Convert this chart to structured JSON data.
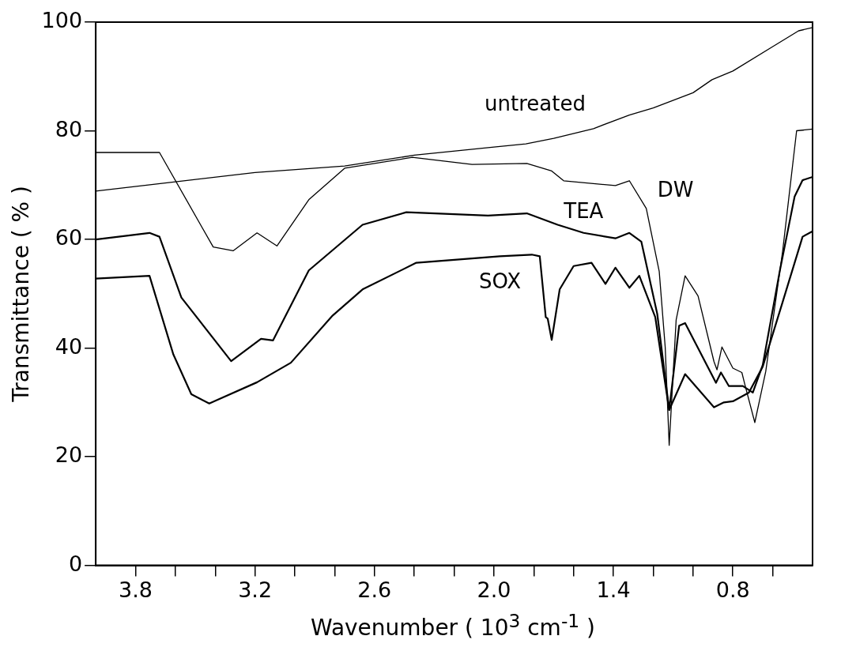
{
  "chart_data": {
    "type": "line",
    "xlabel": "Wavenumber ( 10$^{3}$ cm$^{-1}$ )",
    "ylabel": "Transmittance ( % )",
    "xlim": [
      4.0,
      0.4
    ],
    "ylim": [
      0,
      100
    ],
    "xticks": [
      {
        "value": 3.8,
        "label": "3.8"
      },
      {
        "value": 3.6,
        "label": null
      },
      {
        "value": 3.4,
        "label": null
      },
      {
        "value": 3.2,
        "label": "3.2"
      },
      {
        "value": 3.0,
        "label": null
      },
      {
        "value": 2.8,
        "label": null
      },
      {
        "value": 2.6,
        "label": "2.6"
      },
      {
        "value": 2.4,
        "label": null
      },
      {
        "value": 2.2,
        "label": null
      },
      {
        "value": 2.0,
        "label": "2.0"
      },
      {
        "value": 1.8,
        "label": null
      },
      {
        "value": 1.6,
        "label": null
      },
      {
        "value": 1.4,
        "label": "1.4"
      },
      {
        "value": 1.2,
        "label": null
      },
      {
        "value": 1.0,
        "label": null
      },
      {
        "value": 0.8,
        "label": "0.8"
      },
      {
        "value": 0.6,
        "label": null
      }
    ],
    "yticks": [
      0,
      20,
      40,
      60,
      80,
      100
    ],
    "marker": "none",
    "line_style": "solid",
    "legend": false,
    "series": [
      {
        "name": "untreated",
        "color": "#000000",
        "x": [
          4.0,
          3.6,
          3.2,
          2.75,
          2.4,
          2.0,
          1.84,
          1.7,
          1.5,
          1.32,
          1.2,
          1.0,
          0.905,
          0.8,
          0.6,
          0.47,
          0.4
        ],
        "values": [
          68.9,
          70.6,
          72.3,
          73.5,
          75.5,
          77.0,
          77.6,
          78.6,
          80.4,
          82.9,
          84.2,
          87.0,
          89.4,
          91.0,
          95.5,
          98.4,
          99.0
        ]
      },
      {
        "name": "DW",
        "color": "#000000",
        "x": [
          4.0,
          3.68,
          3.41,
          3.31,
          3.19,
          3.09,
          2.93,
          2.75,
          2.41,
          2.11,
          1.835,
          1.71,
          1.65,
          1.39,
          1.32,
          1.235,
          1.17,
          1.14,
          1.12,
          1.085,
          1.04,
          0.975,
          0.895,
          0.88,
          0.855,
          0.8,
          0.755,
          0.74,
          0.69,
          0.635,
          0.55,
          0.48,
          0.4
        ],
        "values": [
          76,
          76,
          58.6,
          57.9,
          61.2,
          58.8,
          67.3,
          73.1,
          75.1,
          73.8,
          74.0,
          72.6,
          70.8,
          69.9,
          70.8,
          65.7,
          54.1,
          40.2,
          22.1,
          45.2,
          53.3,
          49.6,
          37.5,
          36.0,
          40.2,
          36.3,
          35.5,
          33.3,
          26.3,
          35.7,
          57.9,
          80.0,
          80.3
        ]
      },
      {
        "name": "TEA",
        "color": "#000000",
        "x": [
          4.0,
          3.73,
          3.68,
          3.57,
          3.32,
          3.17,
          3.11,
          2.93,
          2.66,
          2.44,
          2.03,
          1.835,
          1.68,
          1.55,
          1.39,
          1.32,
          1.26,
          1.18,
          1.12,
          1.07,
          1.04,
          0.885,
          0.86,
          0.82,
          0.75,
          0.7,
          0.65,
          0.565,
          0.49,
          0.45,
          0.4
        ],
        "values": [
          60,
          61.2,
          60.5,
          49.3,
          37.6,
          41.7,
          41.4,
          54.3,
          62.7,
          65,
          64.4,
          64.8,
          62.7,
          61.2,
          60.2,
          61.2,
          59.6,
          46.3,
          28.6,
          44.1,
          44.6,
          33.6,
          35.5,
          33.0,
          33.0,
          31.8,
          36.9,
          54.1,
          67.9,
          70.9,
          71.5
        ]
      },
      {
        "name": "SOX",
        "color": "#000000",
        "x": [
          4.0,
          3.73,
          3.61,
          3.52,
          3.43,
          3.19,
          3.02,
          2.81,
          2.66,
          2.39,
          1.97,
          1.81,
          1.77,
          1.74,
          1.73,
          1.71,
          1.67,
          1.6,
          1.51,
          1.44,
          1.39,
          1.32,
          1.27,
          1.19,
          1.12,
          1.04,
          0.895,
          0.845,
          0.8,
          0.72,
          0.65,
          0.55,
          0.45,
          0.4
        ],
        "values": [
          52.8,
          53.3,
          38.8,
          31.5,
          29.8,
          33.7,
          37.3,
          46,
          50.8,
          55.7,
          56.9,
          57.2,
          56.9,
          45.7,
          45.4,
          41.5,
          50.8,
          55.1,
          55.7,
          51.8,
          54.8,
          51.1,
          53.3,
          45.7,
          28.6,
          35.2,
          29.1,
          30,
          30.2,
          31.8,
          36.6,
          48.5,
          60.5,
          61.5
        ]
      }
    ]
  }
}
